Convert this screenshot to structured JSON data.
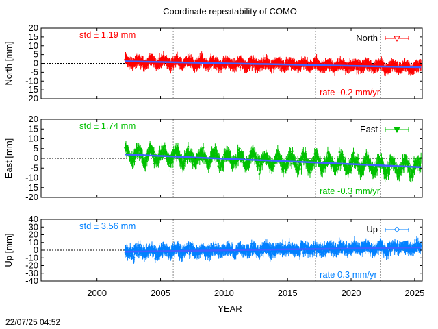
{
  "chart_data": {
    "type": "scatter",
    "title": "Coordinate repeatability of COMO",
    "xlabel": "YEAR",
    "xlim": [
      1995.6,
      2025.6
    ],
    "xticks": [
      2000,
      2005,
      2010,
      2015,
      2020,
      2025
    ],
    "vlines": [
      2006.0,
      2017.2,
      2022.3
    ],
    "data_start": 2002.2,
    "data_end": 2025.5,
    "timestamp": "22/07/25 04:52",
    "panels": [
      {
        "name": "North",
        "ylabel": "North [mm]",
        "ylim": [
          -20,
          20
        ],
        "yticks": [
          -20,
          -15,
          -10,
          -5,
          0,
          5,
          10,
          15,
          20
        ],
        "std_label": "std ± 1.19 mm",
        "rate_label": "rate -0.2 mm/yr",
        "legend": "North",
        "marker": "triangle-down-open",
        "color": "#ff0000",
        "trend": [
          1.2,
          -2.2
        ],
        "amplitude": 1.2,
        "noise": 1.19,
        "errorbar": 2.2
      },
      {
        "name": "East",
        "ylabel": "East [mm]",
        "ylim": [
          -20,
          20
        ],
        "yticks": [
          -20,
          -15,
          -10,
          -5,
          0,
          5,
          10,
          15,
          20
        ],
        "std_label": "std ± 1.74 mm",
        "rate_label": "rate -0.3 mm/yr",
        "legend": "East",
        "marker": "triangle-down-filled",
        "color": "#00c000",
        "trend": [
          2.0,
          -4.5
        ],
        "amplitude": 3.0,
        "noise": 1.74,
        "errorbar": 2.2
      },
      {
        "name": "Up",
        "ylabel": "Up [mm]",
        "ylim": [
          -40,
          40
        ],
        "yticks": [
          -40,
          -30,
          -20,
          -10,
          0,
          10,
          20,
          30,
          40
        ],
        "std_label": "std ± 3.56 mm",
        "rate_label": "rate  0.3 mm/yr",
        "legend": "Up",
        "marker": "diamond-open",
        "color": "#0080ff",
        "trend": [
          -2.0,
          3.5
        ],
        "amplitude": 2.5,
        "noise": 3.56,
        "errorbar": 5.0
      }
    ]
  }
}
